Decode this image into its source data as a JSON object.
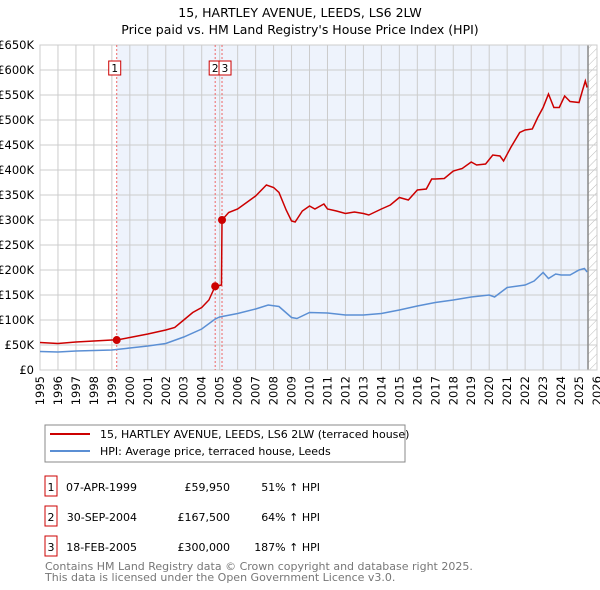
{
  "title": "15, HARTLEY AVENUE, LEEDS, LS6 2LW",
  "subtitle": "Price paid vs. HM Land Registry's House Price Index (HPI)",
  "chart_data": {
    "type": "line",
    "title": "15, HARTLEY AVENUE, LEEDS, LS6 2LW — Price paid vs. HM Land Registry's House Price Index (HPI)",
    "xlim": [
      1995,
      2026
    ],
    "ylim": [
      0,
      650000
    ],
    "x_ticks": [
      "1995",
      "1996",
      "1997",
      "1998",
      "1999",
      "2000",
      "2001",
      "2002",
      "2003",
      "2004",
      "2005",
      "2006",
      "2007",
      "2008",
      "2009",
      "2010",
      "2011",
      "2012",
      "2013",
      "2014",
      "2015",
      "2016",
      "2017",
      "2018",
      "2019",
      "2020",
      "2021",
      "2022",
      "2023",
      "2024",
      "2025",
      "2026"
    ],
    "y_ticks": [
      {
        "v": 0,
        "label": "£0"
      },
      {
        "v": 50000,
        "label": "£50K"
      },
      {
        "v": 100000,
        "label": "£100K"
      },
      {
        "v": 150000,
        "label": "£150K"
      },
      {
        "v": 200000,
        "label": "£200K"
      },
      {
        "v": 250000,
        "label": "£250K"
      },
      {
        "v": 300000,
        "label": "£300K"
      },
      {
        "v": 350000,
        "label": "£350K"
      },
      {
        "v": 400000,
        "label": "£400K"
      },
      {
        "v": 450000,
        "label": "£450K"
      },
      {
        "v": 500000,
        "label": "£500K"
      },
      {
        "v": 550000,
        "label": "£550K"
      },
      {
        "v": 600000,
        "label": "£600K"
      },
      {
        "v": 650000,
        "label": "£650K"
      }
    ],
    "grid": true,
    "series": [
      {
        "name": "15, HARTLEY AVENUE, LEEDS, LS6 2LW (terraced house)",
        "color": "#cc0000",
        "points": [
          [
            1995,
            55000
          ],
          [
            1996,
            53000
          ],
          [
            1997,
            56000
          ],
          [
            1998,
            58000
          ],
          [
            1999,
            60000
          ],
          [
            1999.27,
            59950
          ],
          [
            2000,
            65000
          ],
          [
            2001,
            72000
          ],
          [
            2002,
            80000
          ],
          [
            2002.5,
            85000
          ],
          [
            2003,
            100000
          ],
          [
            2003.5,
            115000
          ],
          [
            2004,
            125000
          ],
          [
            2004.4,
            140000
          ],
          [
            2004.75,
            167500
          ],
          [
            2005.1,
            170000
          ],
          [
            2005.13,
            300000
          ],
          [
            2005.5,
            315000
          ],
          [
            2006,
            322000
          ],
          [
            2006.5,
            335000
          ],
          [
            2007,
            348000
          ],
          [
            2007.6,
            370000
          ],
          [
            2008,
            365000
          ],
          [
            2008.3,
            355000
          ],
          [
            2008.7,
            320000
          ],
          [
            2009,
            298000
          ],
          [
            2009.2,
            296000
          ],
          [
            2009.6,
            318000
          ],
          [
            2010,
            328000
          ],
          [
            2010.3,
            322000
          ],
          [
            2010.8,
            332000
          ],
          [
            2011,
            322000
          ],
          [
            2011.5,
            318000
          ],
          [
            2012,
            313000
          ],
          [
            2012.5,
            316000
          ],
          [
            2013,
            313000
          ],
          [
            2013.3,
            310000
          ],
          [
            2014,
            322000
          ],
          [
            2014.5,
            330000
          ],
          [
            2015,
            345000
          ],
          [
            2015.5,
            340000
          ],
          [
            2016,
            360000
          ],
          [
            2016.5,
            362000
          ],
          [
            2016.8,
            382000
          ],
          [
            2017,
            382000
          ],
          [
            2017.5,
            383000
          ],
          [
            2018,
            398000
          ],
          [
            2018.5,
            403000
          ],
          [
            2019,
            416000
          ],
          [
            2019.3,
            410000
          ],
          [
            2019.8,
            412000
          ],
          [
            2020.2,
            430000
          ],
          [
            2020.6,
            428000
          ],
          [
            2020.8,
            418000
          ],
          [
            2021.2,
            445000
          ],
          [
            2021.7,
            475000
          ],
          [
            2022,
            480000
          ],
          [
            2022.4,
            482000
          ],
          [
            2022.7,
            505000
          ],
          [
            2023,
            525000
          ],
          [
            2023.3,
            552000
          ],
          [
            2023.6,
            525000
          ],
          [
            2023.9,
            525000
          ],
          [
            2024.2,
            548000
          ],
          [
            2024.5,
            537000
          ],
          [
            2025,
            535000
          ],
          [
            2025.2,
            560000
          ],
          [
            2025.35,
            578000
          ],
          [
            2025.45,
            565000
          ]
        ]
      },
      {
        "name": "HPI: Average price, terraced house, Leeds",
        "color": "#5b8fd4",
        "points": [
          [
            1995,
            37000
          ],
          [
            1996,
            36000
          ],
          [
            1997,
            38000
          ],
          [
            1998,
            39000
          ],
          [
            1999,
            40000
          ],
          [
            2000,
            44000
          ],
          [
            2001,
            48000
          ],
          [
            2002,
            53000
          ],
          [
            2003,
            66000
          ],
          [
            2004,
            82000
          ],
          [
            2004.75,
            102000
          ],
          [
            2005,
            106000
          ],
          [
            2006,
            113000
          ],
          [
            2007,
            122000
          ],
          [
            2007.7,
            130000
          ],
          [
            2008.3,
            127000
          ],
          [
            2009,
            105000
          ],
          [
            2009.3,
            103000
          ],
          [
            2010,
            115000
          ],
          [
            2011,
            114000
          ],
          [
            2012,
            110000
          ],
          [
            2013,
            110000
          ],
          [
            2014,
            113000
          ],
          [
            2015,
            120000
          ],
          [
            2016,
            128000
          ],
          [
            2017,
            135000
          ],
          [
            2018,
            140000
          ],
          [
            2019,
            146000
          ],
          [
            2020,
            150000
          ],
          [
            2020.3,
            146000
          ],
          [
            2021,
            165000
          ],
          [
            2022,
            170000
          ],
          [
            2022.5,
            178000
          ],
          [
            2023,
            195000
          ],
          [
            2023.3,
            183000
          ],
          [
            2023.7,
            192000
          ],
          [
            2024,
            190000
          ],
          [
            2024.5,
            190000
          ],
          [
            2025,
            200000
          ],
          [
            2025.3,
            203000
          ],
          [
            2025.45,
            196000
          ]
        ]
      }
    ],
    "sales": [
      {
        "n": "1",
        "x": 1999.27,
        "price": 59950
      },
      {
        "n": "2",
        "x": 2004.75,
        "price": 167500
      },
      {
        "n": "3",
        "x": 2005.13,
        "price": 300000
      }
    ],
    "shade_from": 1999.27,
    "hatch_from": 2025.5,
    "legend": {
      "placement": "below",
      "entries": [
        "15, HARTLEY AVENUE, LEEDS, LS6 2LW (terraced house)",
        "HPI: Average price, terraced house, Leeds"
      ]
    }
  },
  "table": [
    {
      "n": "1",
      "date": "07-APR-1999",
      "price": "£59,950",
      "hpi": "51% ↑ HPI"
    },
    {
      "n": "2",
      "date": "30-SEP-2004",
      "price": "£167,500",
      "hpi": "64% ↑ HPI"
    },
    {
      "n": "3",
      "date": "18-FEB-2005",
      "price": "£300,000",
      "hpi": "187% ↑ HPI"
    }
  ],
  "footer": [
    "Contains HM Land Registry data © Crown copyright and database right 2025.",
    "This data is licensed under the Open Government Licence v3.0."
  ]
}
